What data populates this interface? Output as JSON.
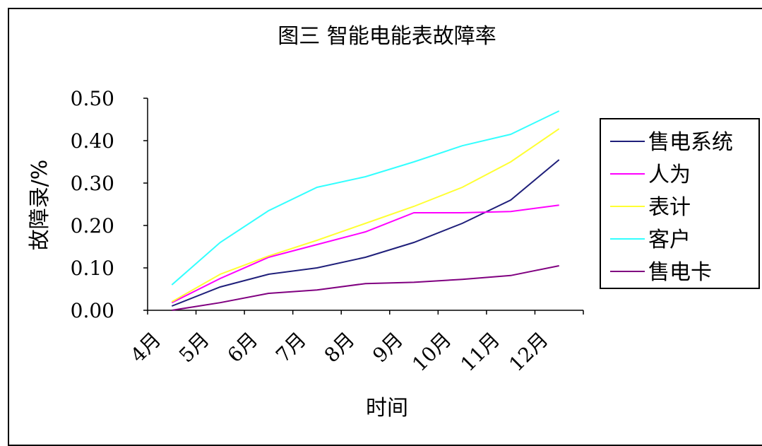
{
  "chart_data": {
    "type": "line",
    "title": "图三 智能电能表故障率",
    "xlabel": "时间",
    "ylabel": "故障录/%",
    "categories": [
      "4月",
      "5月",
      "6月",
      "7月",
      "8月",
      "9月",
      "10月",
      "11月",
      "12月"
    ],
    "ylim": [
      0,
      0.5
    ],
    "yticks": [
      "0.00",
      "0.10",
      "0.20",
      "0.30",
      "0.40",
      "0.50"
    ],
    "grid": false,
    "legend_position": "right",
    "series": [
      {
        "name": "售电系统",
        "color": "#1f1f7a",
        "values": [
          0.01,
          0.055,
          0.085,
          0.1,
          0.125,
          0.16,
          0.205,
          0.26,
          0.355
        ]
      },
      {
        "name": "人为",
        "color": "#ff00ff",
        "values": [
          0.018,
          0.075,
          0.125,
          0.155,
          0.185,
          0.23,
          0.23,
          0.233,
          0.248
        ]
      },
      {
        "name": "表计",
        "color": "#ffff33",
        "values": [
          0.02,
          0.085,
          0.128,
          0.165,
          0.205,
          0.245,
          0.29,
          0.35,
          0.428
        ]
      },
      {
        "name": "客户",
        "color": "#33ffff",
        "values": [
          0.06,
          0.16,
          0.235,
          0.29,
          0.315,
          0.35,
          0.388,
          0.415,
          0.47
        ]
      },
      {
        "name": "售电卡",
        "color": "#800080",
        "values": [
          0.0,
          0.018,
          0.04,
          0.048,
          0.063,
          0.066,
          0.073,
          0.082,
          0.105
        ]
      }
    ]
  }
}
